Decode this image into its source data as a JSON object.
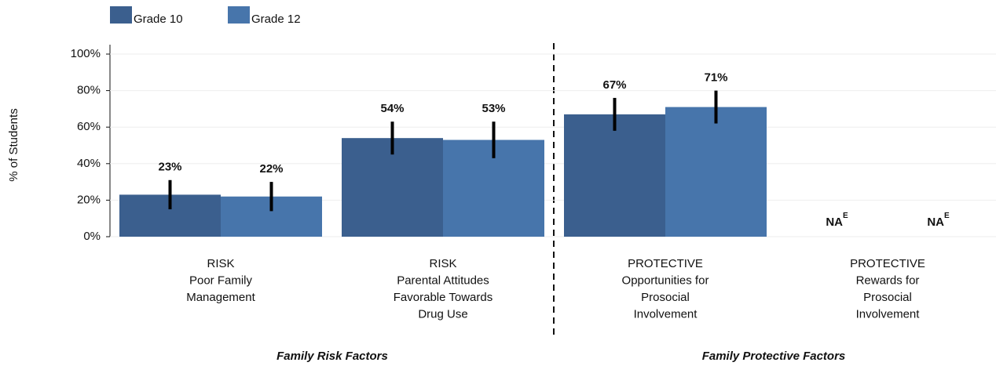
{
  "chart_data": {
    "type": "bar",
    "y_label": "% of Students",
    "categories": [
      [
        "RISK",
        "Poor Family",
        "Management"
      ],
      [
        "RISK",
        "Parental Attitudes",
        "Favorable Towards",
        "Drug Use"
      ],
      [
        "PROTECTIVE",
        "Opportunities for",
        "Prosocial",
        "Involvement"
      ],
      [
        "PROTECTIVE",
        "Rewards for",
        "Prosocial",
        "Involvement"
      ]
    ],
    "series": [
      {
        "name": "Grade 10",
        "color": "#3b5f8e",
        "values": [
          23,
          54,
          67,
          null
        ],
        "errors": [
          8,
          9,
          9,
          null
        ],
        "value_labels": [
          "23%",
          "54%",
          "67%",
          "NA"
        ]
      },
      {
        "name": "Grade 12",
        "color": "#4775ab",
        "values": [
          22,
          53,
          71,
          null
        ],
        "errors": [
          8,
          10,
          9,
          null
        ],
        "value_labels": [
          "22%",
          "53%",
          "71%",
          "NA"
        ]
      }
    ],
    "na_note": "E",
    "groups": [
      "Family Risk Factors",
      "Family Protective Factors"
    ],
    "ylim": [
      0,
      100
    ],
    "yticks": [
      {
        "value": 0,
        "label": "0%"
      },
      {
        "value": 20,
        "label": "20%"
      },
      {
        "value": 40,
        "label": "40%"
      },
      {
        "value": 60,
        "label": "60%"
      },
      {
        "value": 80,
        "label": "80%"
      },
      {
        "value": 100,
        "label": "100%"
      }
    ],
    "grid": true
  }
}
